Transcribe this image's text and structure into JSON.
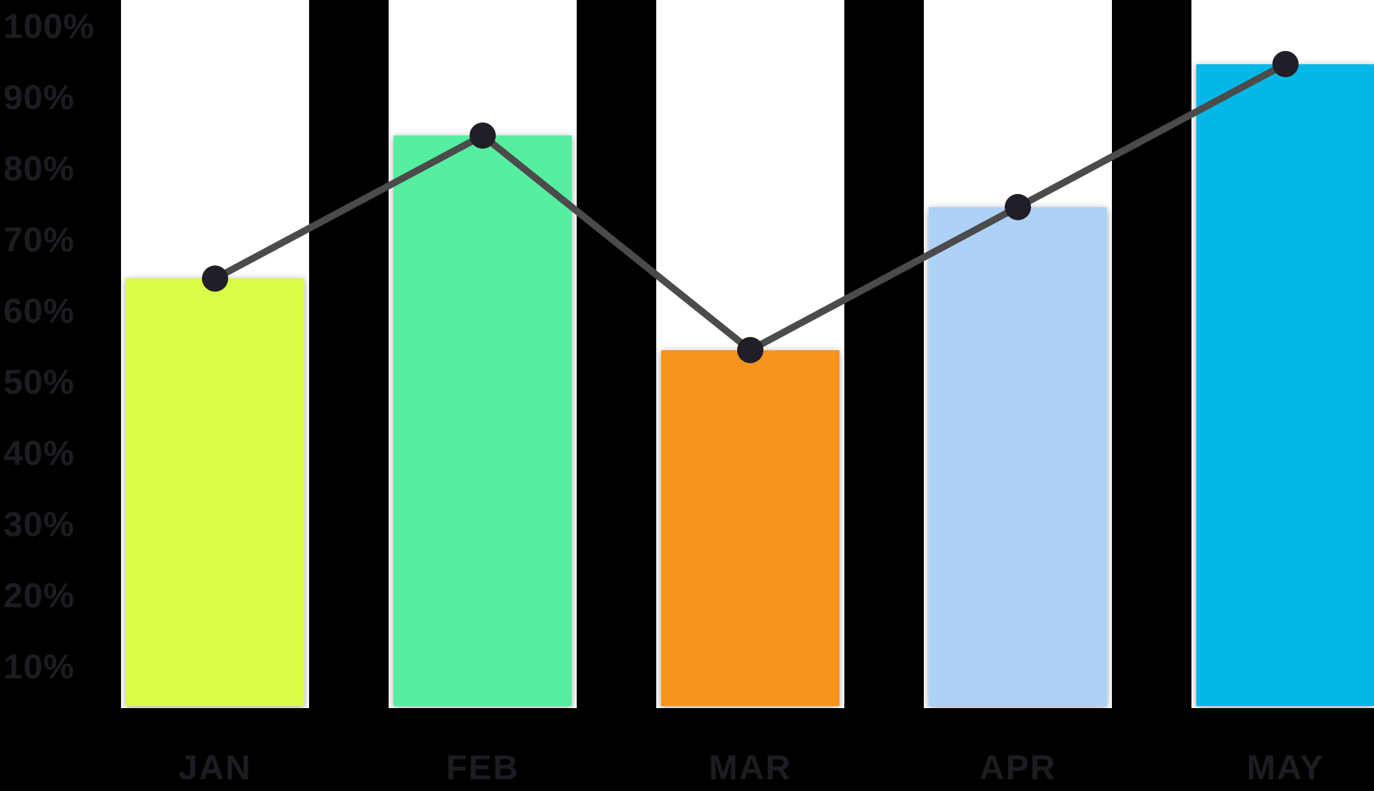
{
  "chart_data": {
    "type": "bar",
    "subtype": "bar-with-line-overlay",
    "title": "",
    "xlabel": "",
    "ylabel": "",
    "categories": [
      "JAN",
      "FEB",
      "MAR",
      "APR",
      "MAY"
    ],
    "values": [
      65,
      85,
      55,
      75,
      95
    ],
    "overlay_line": {
      "type": "line",
      "values": [
        65,
        85,
        55,
        75,
        95
      ],
      "connects": "bar-tops",
      "marker": "filled-circle"
    },
    "ylim": [
      0,
      100
    ],
    "yticks": [
      "100%",
      "90%",
      "80%",
      "70%",
      "60%",
      "50%",
      "40%",
      "30%",
      "20%",
      "10%"
    ],
    "grid": false,
    "legend": false,
    "colors": {
      "background": "#000000",
      "bar_track": "#ffffff",
      "bar_fills": [
        "#d9fd45",
        "#56efa2",
        "#f7941e",
        "#aed1f8",
        "#03b8e6"
      ],
      "line": "#4b4b4b",
      "marker": "#211e27",
      "axis_label": "#1d1c23"
    }
  }
}
